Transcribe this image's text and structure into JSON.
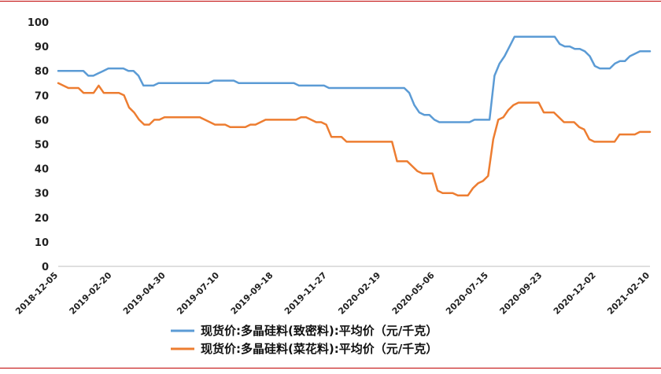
{
  "chart_data": {
    "type": "line",
    "title": "",
    "xlabel": "",
    "ylabel": "",
    "ylim": [
      0,
      100
    ],
    "yticks": [
      0,
      10,
      20,
      30,
      40,
      50,
      60,
      70,
      80,
      90,
      100
    ],
    "grid": false,
    "legend_position": "bottom",
    "x_tick_labels": [
      "2018-12-05",
      "2019-02-20",
      "2019-04-30",
      "2019-07-10",
      "2019-09-18",
      "2019-11-27",
      "2020-02-19",
      "2020-05-06",
      "2020-07-15",
      "2020-09-23",
      "2020-12-02",
      "2021-02-10"
    ],
    "series": [
      {
        "name": "现货价:多晶硅料(致密料):平均价（元/千克）",
        "color": "#5b9bd5",
        "values": [
          80,
          80,
          80,
          80,
          80,
          80,
          78,
          78,
          79,
          80,
          81,
          81,
          81,
          81,
          80,
          80,
          78,
          74,
          74,
          74,
          75,
          75,
          75,
          75,
          75,
          75,
          75,
          75,
          75,
          75,
          75,
          76,
          76,
          76,
          76,
          76,
          75,
          75,
          75,
          75,
          75,
          75,
          75,
          75,
          75,
          75,
          75,
          75,
          74,
          74,
          74,
          74,
          74,
          74,
          73,
          73,
          73,
          73,
          73,
          73,
          73,
          73,
          73,
          73,
          73,
          73,
          73,
          73,
          73,
          73,
          71,
          66,
          63,
          62,
          62,
          60,
          59,
          59,
          59,
          59,
          59,
          59,
          59,
          60,
          60,
          60,
          60,
          78,
          83,
          86,
          90,
          94,
          94,
          94,
          94,
          94,
          94,
          94,
          94,
          94,
          91,
          90,
          90,
          89,
          89,
          88,
          86,
          82,
          81,
          81,
          81,
          83,
          84,
          84,
          86,
          87,
          88,
          88,
          88
        ]
      },
      {
        "name": "现货价:多晶硅料(菜花料):平均价（元/千克）",
        "color": "#ed7d31",
        "values": [
          75,
          74,
          73,
          73,
          73,
          71,
          71,
          71,
          74,
          71,
          71,
          71,
          71,
          70,
          65,
          63,
          60,
          58,
          58,
          60,
          60,
          61,
          61,
          61,
          61,
          61,
          61,
          61,
          61,
          60,
          59,
          58,
          58,
          58,
          57,
          57,
          57,
          57,
          58,
          58,
          59,
          60,
          60,
          60,
          60,
          60,
          60,
          60,
          61,
          61,
          60,
          59,
          59,
          58,
          53,
          53,
          53,
          51,
          51,
          51,
          51,
          51,
          51,
          51,
          51,
          51,
          51,
          43,
          43,
          43,
          41,
          39,
          38,
          38,
          38,
          31,
          30,
          30,
          30,
          29,
          29,
          29,
          32,
          34,
          35,
          37,
          52,
          60,
          61,
          64,
          66,
          67,
          67,
          67,
          67,
          67,
          63,
          63,
          63,
          61,
          59,
          59,
          59,
          57,
          56,
          52,
          51,
          51,
          51,
          51,
          51,
          54,
          54,
          54,
          54,
          55,
          55,
          55
        ]
      }
    ]
  }
}
